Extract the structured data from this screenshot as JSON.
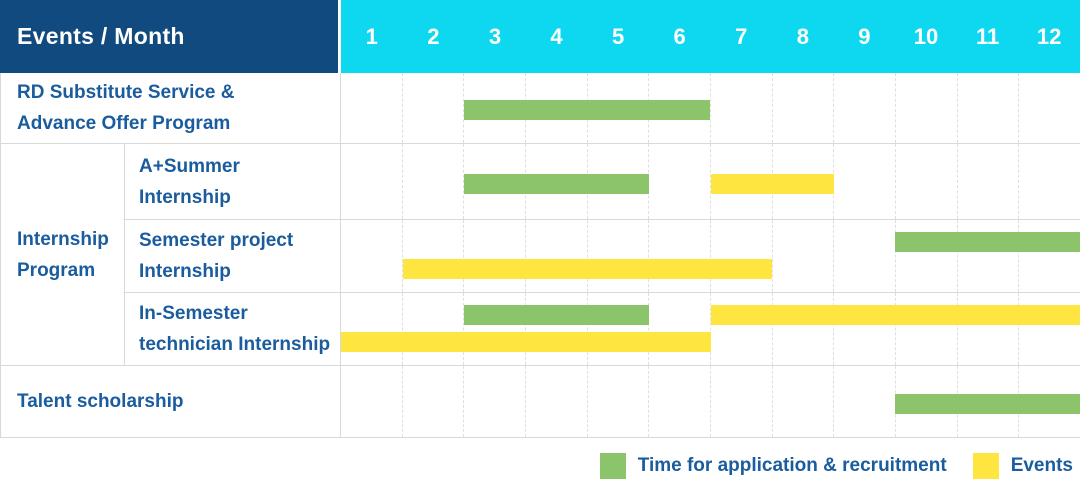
{
  "header": {
    "label": "Events / Month",
    "months": [
      "1",
      "2",
      "3",
      "4",
      "5",
      "6",
      "7",
      "8",
      "9",
      "10",
      "11",
      "12"
    ]
  },
  "groups": {
    "internship_label": "Internship\nProgram"
  },
  "colors": {
    "header_bg": "#114a7e",
    "month_header_bg": "#0ed8f0",
    "label_text": "#1a5c9e",
    "green": "#8bc46a",
    "yellow": "#ffe53f",
    "border": "#d9d9d9",
    "gridline": "#dfdfdf"
  },
  "chart_data": {
    "type": "gantt",
    "x_unit": "month",
    "x_range": [
      1,
      12
    ],
    "grid": "dashed-vertical-month-lines",
    "legend_position": "bottom-right",
    "legend": [
      {
        "key": "green",
        "label": "Time for application & recruitment"
      },
      {
        "key": "yellow",
        "label": "Events"
      }
    ],
    "rows": [
      {
        "label": "RD Substitute Service &\nAdvance Offer Program",
        "group": null,
        "bars": [
          {
            "color": "green",
            "start_month": 3,
            "end_month": 6,
            "track": "mid"
          }
        ]
      },
      {
        "label": "A+Summer\nInternship",
        "group": "Internship Program",
        "bars": [
          {
            "color": "green",
            "start_month": 3,
            "end_month": 5,
            "track": "mid"
          },
          {
            "color": "yellow",
            "start_month": 7,
            "end_month": 8,
            "track": "mid"
          }
        ]
      },
      {
        "label": "Semester project\nInternship",
        "group": "Internship Program",
        "bars": [
          {
            "color": "green",
            "start_month": 10,
            "end_month": 12,
            "track": "top"
          },
          {
            "color": "yellow",
            "start_month": 2,
            "end_month": 7,
            "track": "bottom"
          }
        ]
      },
      {
        "label": "In-Semester\ntechnician Internship",
        "group": "Internship Program",
        "bars": [
          {
            "color": "green",
            "start_month": 3,
            "end_month": 5,
            "track": "top"
          },
          {
            "color": "yellow",
            "start_month": 7,
            "end_month": 12,
            "track": "top"
          },
          {
            "color": "yellow",
            "start_month": 1,
            "end_month": 6,
            "track": "bottom"
          }
        ]
      },
      {
        "label": "Talent scholarship",
        "group": null,
        "bars": [
          {
            "color": "green",
            "start_month": 10,
            "end_month": 12,
            "track": "mid"
          }
        ]
      }
    ]
  }
}
